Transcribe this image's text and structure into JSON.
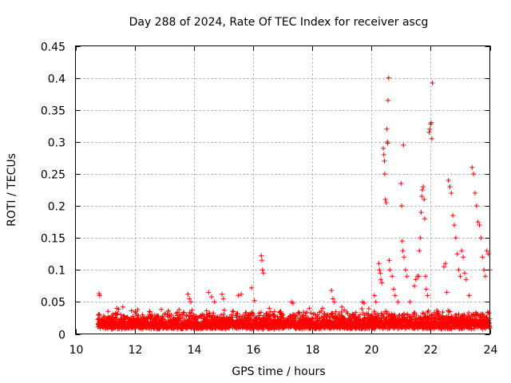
{
  "chart_data": {
    "type": "scatter",
    "title": "Day 288 of 2024, Rate Of TEC Index for receiver ascg",
    "xlabel": "GPS time / hours",
    "ylabel": "ROTI / TECUs",
    "xlim": [
      10,
      24
    ],
    "ylim": [
      0,
      0.45
    ],
    "xticks": [
      "10",
      "12",
      "14",
      "16",
      "18",
      "20",
      "22",
      "24"
    ],
    "yticks": [
      "0",
      "0.05",
      "0.1",
      "0.15",
      "0.2",
      "0.25",
      "0.3",
      "0.35",
      "0.4",
      "0.45"
    ],
    "grid": true,
    "marker": "+",
    "series_color": "#ff0000",
    "baseline_band": {
      "x_start": 10.75,
      "x_end": 24.0,
      "typical_max": 0.035
    },
    "points": [
      [
        10.8,
        0.063
      ],
      [
        10.82,
        0.06
      ],
      [
        11.1,
        0.035
      ],
      [
        11.4,
        0.04
      ],
      [
        11.6,
        0.042
      ],
      [
        12.1,
        0.038
      ],
      [
        12.5,
        0.035
      ],
      [
        13.5,
        0.038
      ],
      [
        13.8,
        0.062
      ],
      [
        13.85,
        0.055
      ],
      [
        13.9,
        0.05
      ],
      [
        14.5,
        0.065
      ],
      [
        14.6,
        0.058
      ],
      [
        14.7,
        0.05
      ],
      [
        14.95,
        0.062
      ],
      [
        15.0,
        0.055
      ],
      [
        15.5,
        0.06
      ],
      [
        15.6,
        0.062
      ],
      [
        15.95,
        0.072
      ],
      [
        16.05,
        0.052
      ],
      [
        16.28,
        0.122
      ],
      [
        16.3,
        0.115
      ],
      [
        16.32,
        0.1
      ],
      [
        16.35,
        0.095
      ],
      [
        16.55,
        0.04
      ],
      [
        17.3,
        0.05
      ],
      [
        17.35,
        0.048
      ],
      [
        17.9,
        0.04
      ],
      [
        18.35,
        0.04
      ],
      [
        18.65,
        0.068
      ],
      [
        18.7,
        0.055
      ],
      [
        18.75,
        0.05
      ],
      [
        19.0,
        0.042
      ],
      [
        19.7,
        0.05
      ],
      [
        19.75,
        0.048
      ],
      [
        20.1,
        0.06
      ],
      [
        20.15,
        0.05
      ],
      [
        20.25,
        0.11
      ],
      [
        20.27,
        0.1
      ],
      [
        20.3,
        0.095
      ],
      [
        20.32,
        0.085
      ],
      [
        20.35,
        0.08
      ],
      [
        20.4,
        0.29
      ],
      [
        20.42,
        0.28
      ],
      [
        20.44,
        0.27
      ],
      [
        20.45,
        0.25
      ],
      [
        20.47,
        0.21
      ],
      [
        20.5,
        0.205
      ],
      [
        20.52,
        0.32
      ],
      [
        20.54,
        0.3
      ],
      [
        20.55,
        0.298
      ],
      [
        20.56,
        0.365
      ],
      [
        20.58,
        0.4
      ],
      [
        20.6,
        0.115
      ],
      [
        20.62,
        0.1
      ],
      [
        20.7,
        0.09
      ],
      [
        20.75,
        0.07
      ],
      [
        20.8,
        0.06
      ],
      [
        20.9,
        0.05
      ],
      [
        21.0,
        0.235
      ],
      [
        21.02,
        0.2
      ],
      [
        21.04,
        0.145
      ],
      [
        21.06,
        0.13
      ],
      [
        21.08,
        0.295
      ],
      [
        21.1,
        0.12
      ],
      [
        21.15,
        0.1
      ],
      [
        21.2,
        0.09
      ],
      [
        21.3,
        0.05
      ],
      [
        21.45,
        0.075
      ],
      [
        21.5,
        0.085
      ],
      [
        21.55,
        0.09
      ],
      [
        21.6,
        0.09
      ],
      [
        21.62,
        0.13
      ],
      [
        21.65,
        0.15
      ],
      [
        21.68,
        0.19
      ],
      [
        21.7,
        0.215
      ],
      [
        21.72,
        0.225
      ],
      [
        21.75,
        0.23
      ],
      [
        21.78,
        0.21
      ],
      [
        21.8,
        0.18
      ],
      [
        21.83,
        0.09
      ],
      [
        21.85,
        0.07
      ],
      [
        21.9,
        0.06
      ],
      [
        21.95,
        0.315
      ],
      [
        21.97,
        0.32
      ],
      [
        22.0,
        0.328
      ],
      [
        22.02,
        0.33
      ],
      [
        22.04,
        0.305
      ],
      [
        22.06,
        0.392
      ],
      [
        22.1,
        0.02
      ],
      [
        22.4,
        0.025
      ],
      [
        22.45,
        0.105
      ],
      [
        22.5,
        0.11
      ],
      [
        22.55,
        0.065
      ],
      [
        22.6,
        0.24
      ],
      [
        22.65,
        0.23
      ],
      [
        22.7,
        0.22
      ],
      [
        22.75,
        0.185
      ],
      [
        22.8,
        0.17
      ],
      [
        22.85,
        0.15
      ],
      [
        22.9,
        0.125
      ],
      [
        22.95,
        0.1
      ],
      [
        23.0,
        0.09
      ],
      [
        23.05,
        0.13
      ],
      [
        23.1,
        0.12
      ],
      [
        23.15,
        0.095
      ],
      [
        23.2,
        0.085
      ],
      [
        23.3,
        0.06
      ],
      [
        23.4,
        0.26
      ],
      [
        23.45,
        0.25
      ],
      [
        23.5,
        0.22
      ],
      [
        23.55,
        0.2
      ],
      [
        23.6,
        0.175
      ],
      [
        23.65,
        0.17
      ],
      [
        23.7,
        0.15
      ],
      [
        23.75,
        0.12
      ],
      [
        23.8,
        0.1
      ],
      [
        23.85,
        0.09
      ],
      [
        23.9,
        0.13
      ],
      [
        23.95,
        0.125
      ],
      [
        24.0,
        0.1
      ]
    ]
  }
}
